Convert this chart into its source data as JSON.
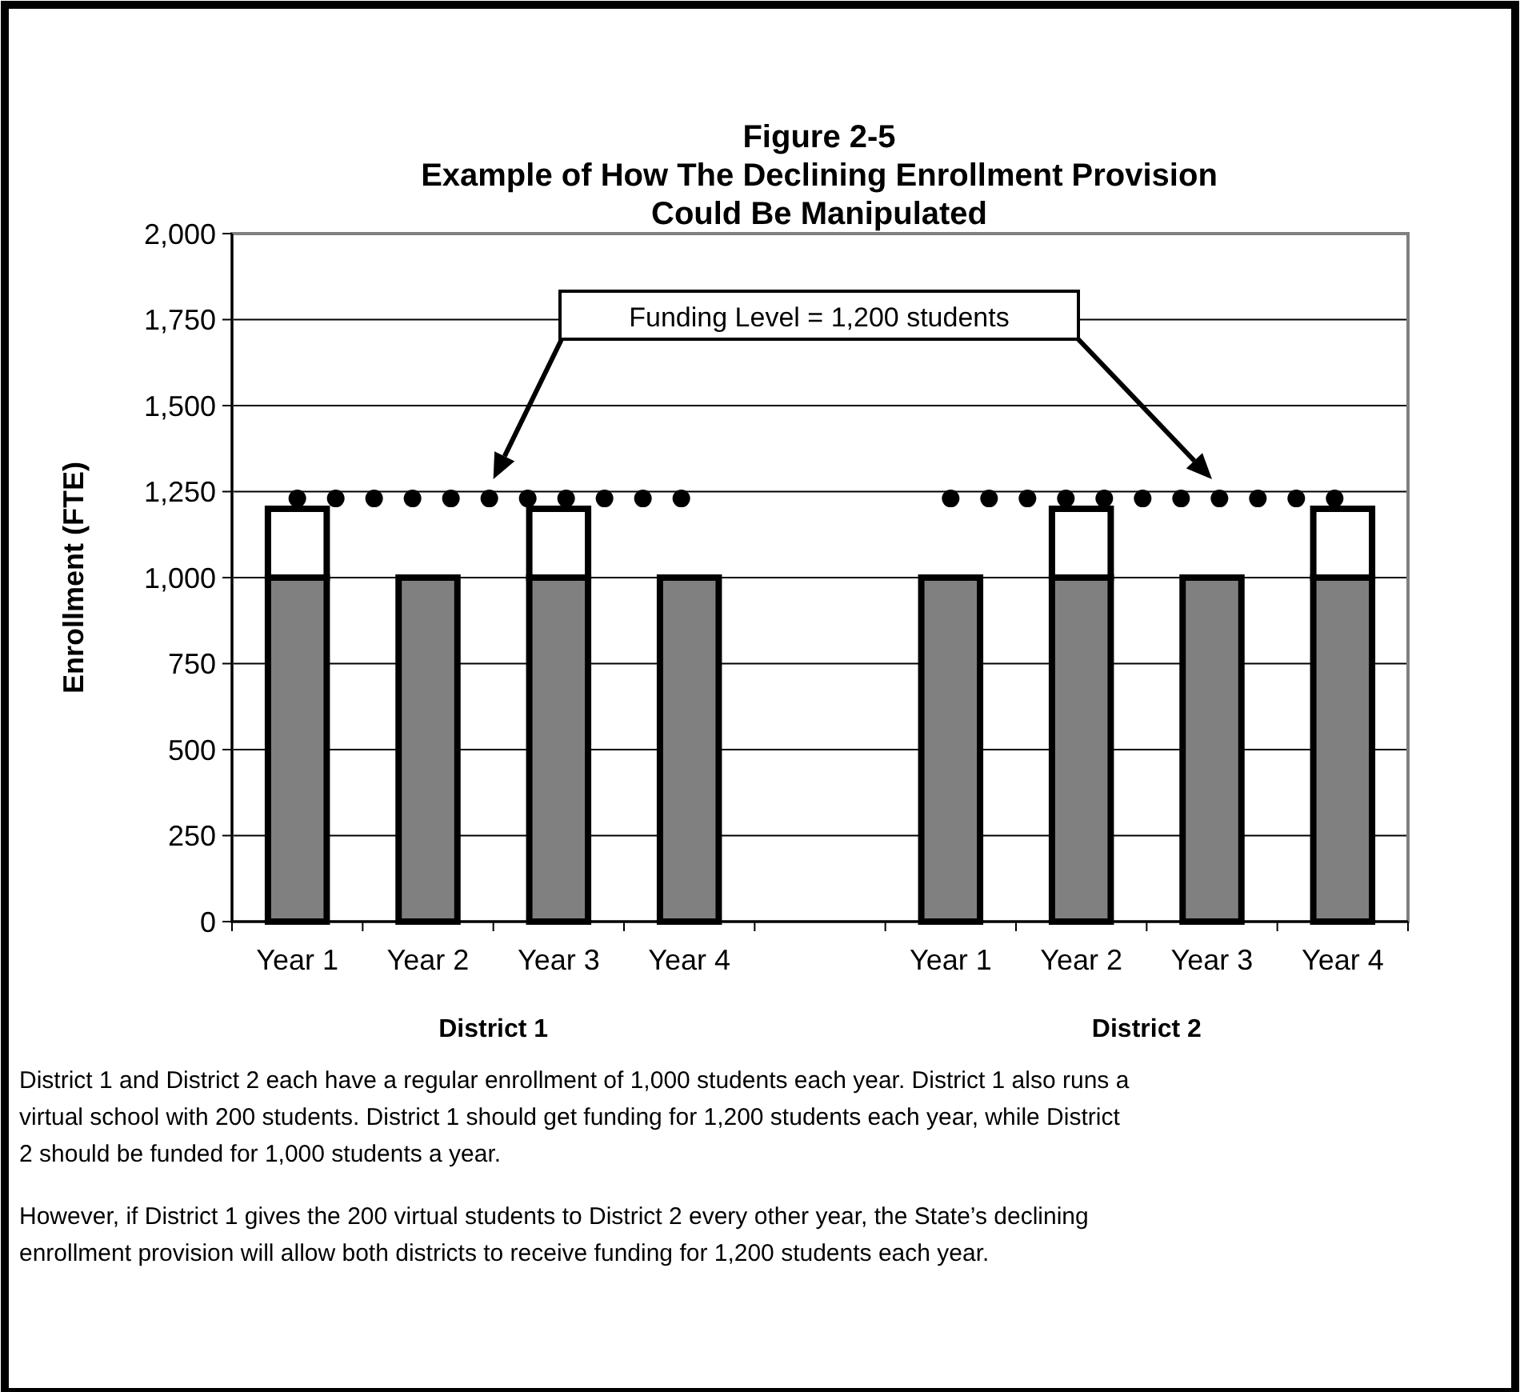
{
  "chart_data": {
    "type": "bar",
    "title": "Figure 2-5\nExample of How The Declining Enrollment Provision\nCould Be Manipulated",
    "ylabel": "Enrollment (FTE)",
    "categories": [
      "Year 1",
      "Year 2",
      "Year 3",
      "Year 4",
      null,
      "Year 1",
      "Year 2",
      "Year 3",
      "Year 4"
    ],
    "stacked": true,
    "series": [
      {
        "color": "#808080",
        "values": [
          1000,
          1000,
          1000,
          1000,
          null,
          1000,
          1000,
          1000,
          1000
        ]
      },
      {
        "color": "#ffffff",
        "values": [
          200,
          null,
          200,
          null,
          null,
          null,
          200,
          null,
          200
        ]
      },
      {
        "type": "line",
        "color": "#000000",
        "line_style": "dotted",
        "values": [
          1230,
          1230,
          1230,
          1230,
          null,
          1230,
          1230,
          1230,
          1230
        ]
      }
    ],
    "ylim": [
      0,
      2000
    ],
    "yticks": [
      {
        "value": 0,
        "label": "0"
      },
      {
        "value": 250,
        "label": "250"
      },
      {
        "value": 500,
        "label": "500"
      },
      {
        "value": 750,
        "label": "750"
      },
      {
        "value": 1000,
        "label": "1,000"
      },
      {
        "value": 1250,
        "label": "1,250"
      },
      {
        "value": 1500,
        "label": "1,500"
      },
      {
        "value": 1750,
        "label": "1,750"
      },
      {
        "value": 2000,
        "label": "2,000"
      }
    ],
    "grid": "y",
    "annotations": [
      "Funding Level = 1,200 students",
      "District 1",
      "District 2",
      "District 1 and District 2 each have a regular enrollment of 1,000 students each year.  District 1 also runs a virtual school with 200 students.  District 1 should get funding for 1,200 students each year, while District 2 should be funded for 1,000 students a year.",
      "However, if District 1 gives the 200 virtual students to District 2 every other year,  the State’s declining enrollment provision will allow both districts to receive funding for 1,200 students each year."
    ]
  }
}
